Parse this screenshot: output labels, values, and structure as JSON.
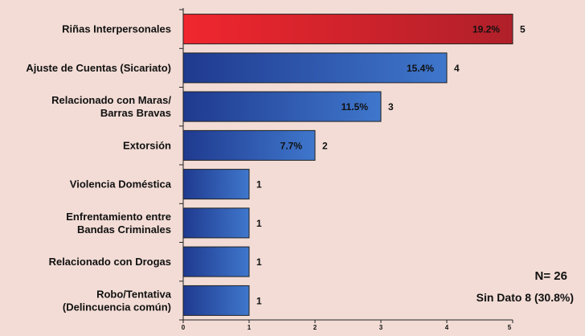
{
  "chart_data": {
    "type": "bar",
    "orientation": "horizontal",
    "categories": [
      [
        "Riñas Interpersonales"
      ],
      [
        "Ajuste de Cuentas (Sicariato)"
      ],
      [
        "Relacionado con Maras/",
        "Barras Bravas"
      ],
      [
        "Extorsión"
      ],
      [
        "Violencia Doméstica"
      ],
      [
        "Enfrentamiento entre",
        "Bandas Criminales"
      ],
      [
        "Relacionado con Drogas"
      ],
      [
        "Robo/Tentativa",
        "(Delincuencia común)"
      ]
    ],
    "values": [
      5,
      4,
      3,
      2,
      1,
      1,
      1,
      1
    ],
    "percent_labels": [
      "19.2%",
      "15.4%",
      "11.5%",
      "7.7%",
      "",
      "",
      "",
      ""
    ],
    "count_labels": [
      "5",
      "4",
      "3",
      "2",
      "1",
      "1",
      "1",
      "1"
    ],
    "xlim": [
      0,
      5
    ],
    "x_ticks": [
      "0",
      "1",
      "2",
      "3",
      "4",
      "5"
    ],
    "grid": false,
    "colors": {
      "highlight_start": "#f0262e",
      "highlight_end": "#b0202a",
      "bar_start": "#1f3a8f",
      "bar_end": "#3f77cc",
      "background": "#f2dcd5"
    }
  },
  "notes": {
    "n": "N= 26",
    "sin_dato": "Sin Dato 8 (30.8%)"
  }
}
